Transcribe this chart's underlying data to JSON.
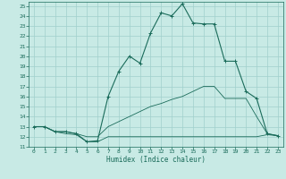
{
  "xlabel": "Humidex (Indice chaleur)",
  "bg_color": "#c8eae5",
  "grid_color": "#a0d0cc",
  "line_color": "#1a6b5a",
  "xlim": [
    -0.5,
    23.5
  ],
  "ylim": [
    11,
    25.4
  ],
  "xticks": [
    0,
    1,
    2,
    3,
    4,
    5,
    6,
    7,
    8,
    9,
    10,
    11,
    12,
    13,
    14,
    15,
    16,
    17,
    18,
    19,
    20,
    21,
    22,
    23
  ],
  "yticks": [
    11,
    12,
    13,
    14,
    15,
    16,
    17,
    18,
    19,
    20,
    21,
    22,
    23,
    24,
    25
  ],
  "series1_x": [
    0,
    1,
    2,
    3,
    4,
    5,
    6,
    7,
    8,
    9,
    10,
    11,
    12,
    13,
    14,
    15,
    16,
    17,
    18,
    19,
    20,
    21,
    22,
    23
  ],
  "series1_y": [
    13.0,
    13.0,
    12.5,
    12.5,
    12.3,
    11.5,
    11.6,
    16.0,
    18.5,
    20.0,
    19.3,
    22.3,
    24.3,
    24.0,
    25.2,
    23.3,
    23.2,
    23.2,
    19.5,
    19.5,
    16.5,
    15.8,
    12.3,
    12.1
  ],
  "series2_x": [
    0,
    1,
    2,
    3,
    4,
    5,
    6,
    7,
    8,
    9,
    10,
    11,
    12,
    13,
    14,
    15,
    16,
    17,
    18,
    19,
    20,
    21,
    22,
    23
  ],
  "series2_y": [
    13.0,
    13.0,
    12.5,
    12.3,
    12.2,
    11.5,
    11.5,
    12.0,
    12.0,
    12.0,
    12.0,
    12.0,
    12.0,
    12.0,
    12.0,
    12.0,
    12.0,
    12.0,
    12.0,
    12.0,
    12.0,
    12.0,
    12.2,
    12.1
  ],
  "series3_x": [
    0,
    1,
    2,
    3,
    4,
    5,
    6,
    7,
    8,
    9,
    10,
    11,
    12,
    13,
    14,
    15,
    16,
    17,
    18,
    19,
    20,
    21,
    22,
    23
  ],
  "series3_y": [
    13.0,
    13.0,
    12.5,
    12.5,
    12.3,
    12.0,
    12.0,
    13.0,
    13.5,
    14.0,
    14.5,
    15.0,
    15.3,
    15.7,
    16.0,
    16.5,
    17.0,
    17.0,
    15.8,
    15.8,
    15.8,
    14.0,
    12.3,
    12.1
  ]
}
